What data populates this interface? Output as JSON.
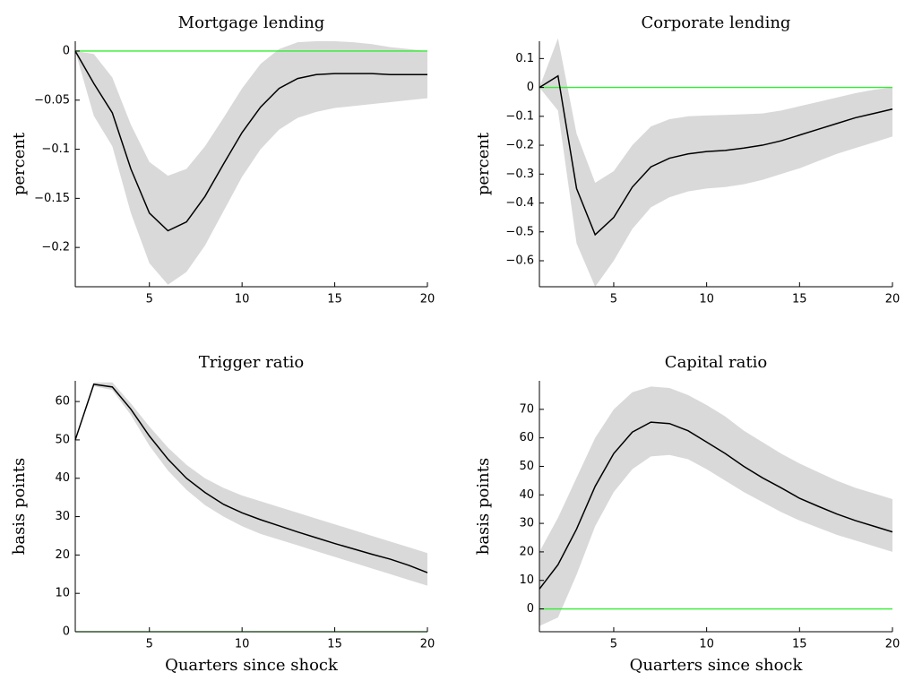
{
  "chart_data": [
    {
      "type": "line",
      "title": "Mortgage lending",
      "ylabel": "percent",
      "x": [
        1,
        2,
        3,
        4,
        5,
        6,
        7,
        8,
        9,
        10,
        11,
        12,
        13,
        14,
        15,
        16,
        17,
        18,
        19,
        20
      ],
      "series": [
        {
          "color": "#000000",
          "values": [
            0,
            -0.033,
            -0.063,
            -0.12,
            -0.165,
            -0.183,
            -0.174,
            -0.148,
            -0.115,
            -0.083,
            -0.057,
            -0.038,
            -0.028,
            -0.024,
            -0.023,
            -0.023,
            -0.023,
            -0.024,
            -0.024,
            -0.024
          ]
        }
      ],
      "band": {
        "color": "#d9d9d9",
        "upper": [
          0,
          -0.003,
          -0.027,
          -0.075,
          -0.113,
          -0.127,
          -0.12,
          -0.097,
          -0.068,
          -0.038,
          -0.013,
          0.002,
          0.009,
          0.01,
          0.01,
          0.009,
          0.007,
          0.004,
          0.002,
          0
        ],
        "lower": [
          0,
          -0.066,
          -0.097,
          -0.165,
          -0.216,
          -0.238,
          -0.225,
          -0.198,
          -0.163,
          -0.128,
          -0.1,
          -0.08,
          -0.068,
          -0.062,
          -0.058,
          -0.056,
          -0.054,
          -0.052,
          -0.05,
          -0.048
        ]
      },
      "hline": 0,
      "hline_color": "#33ee33",
      "xlim": [
        1,
        20
      ],
      "xticks": [
        5,
        10,
        15,
        20
      ],
      "ylim": [
        -0.24,
        0.01
      ],
      "yticks": [
        {
          "value": -0.2,
          "label": "−0.2"
        },
        {
          "value": -0.15,
          "label": "−0.15"
        },
        {
          "value": -0.1,
          "label": "−0.1"
        },
        {
          "value": -0.05,
          "label": "−0.05"
        },
        0
      ]
    },
    {
      "type": "line",
      "title": "Corporate lending",
      "ylabel": "percent",
      "x": [
        1,
        2,
        3,
        4,
        5,
        6,
        7,
        8,
        9,
        10,
        11,
        12,
        13,
        14,
        15,
        16,
        17,
        18,
        19,
        20
      ],
      "series": [
        {
          "color": "#000000",
          "values": [
            0,
            0.04,
            -0.35,
            -0.51,
            -0.45,
            -0.345,
            -0.275,
            -0.245,
            -0.23,
            -0.222,
            -0.218,
            -0.21,
            -0.2,
            -0.185,
            -0.165,
            -0.145,
            -0.125,
            -0.105,
            -0.09,
            -0.075
          ]
        }
      ],
      "band": {
        "color": "#d9d9d9",
        "upper": [
          0,
          0.17,
          -0.16,
          -0.33,
          -0.29,
          -0.2,
          -0.135,
          -0.11,
          -0.1,
          -0.097,
          -0.095,
          -0.093,
          -0.09,
          -0.08,
          -0.065,
          -0.05,
          -0.035,
          -0.02,
          -0.008,
          0
        ],
        "lower": [
          0,
          -0.08,
          -0.54,
          -0.69,
          -0.6,
          -0.49,
          -0.415,
          -0.38,
          -0.36,
          -0.35,
          -0.345,
          -0.335,
          -0.32,
          -0.3,
          -0.28,
          -0.255,
          -0.23,
          -0.21,
          -0.19,
          -0.17
        ]
      },
      "hline": 0,
      "hline_color": "#33ee33",
      "xlim": [
        1,
        20
      ],
      "xticks": [
        5,
        10,
        15,
        20
      ],
      "ylim": [
        -0.69,
        0.16
      ],
      "yticks": [
        {
          "value": -0.6,
          "label": "−0.6"
        },
        {
          "value": -0.5,
          "label": "−0.5"
        },
        {
          "value": -0.4,
          "label": "−0.4"
        },
        {
          "value": -0.3,
          "label": "−0.3"
        },
        {
          "value": -0.2,
          "label": "−0.2"
        },
        {
          "value": -0.1,
          "label": "−0.1"
        },
        0,
        0.1
      ]
    },
    {
      "type": "line",
      "title": "Trigger ratio",
      "ylabel": "basis points",
      "xlabel": "Quarters since shock",
      "x": [
        1,
        2,
        3,
        4,
        5,
        6,
        7,
        8,
        9,
        10,
        11,
        12,
        13,
        14,
        15,
        16,
        17,
        18,
        19,
        20
      ],
      "series": [
        {
          "color": "#000000",
          "values": [
            50,
            64.5,
            63.8,
            58,
            51,
            45,
            40,
            36.3,
            33.2,
            31,
            29.2,
            27.6,
            26,
            24.5,
            23,
            21.6,
            20.2,
            18.9,
            17.3,
            15.4
          ]
        }
      ],
      "band": {
        "color": "#d9d9d9",
        "upper": [
          50,
          65,
          65,
          59.5,
          53.5,
          48,
          43.5,
          40,
          37.5,
          35.5,
          34,
          32.5,
          31,
          29.5,
          28,
          26.5,
          25,
          23.5,
          22,
          20.5
        ],
        "lower": [
          50,
          64,
          63,
          56.5,
          48.5,
          42,
          37,
          33,
          30,
          27.5,
          25.5,
          24,
          22.5,
          21,
          19.5,
          18,
          16.5,
          15,
          13.5,
          12
        ]
      },
      "hline": 0,
      "hline_color": "#33ee33",
      "xlim": [
        1,
        20
      ],
      "xticks": [
        5,
        10,
        15,
        20
      ],
      "ylim": [
        0,
        65.4
      ],
      "yticks": [
        0,
        10,
        20,
        30,
        40,
        50,
        60
      ]
    },
    {
      "type": "line",
      "title": "Capital ratio",
      "ylabel": "basis points",
      "xlabel": "Quarters since shock",
      "x": [
        1,
        2,
        3,
        4,
        5,
        6,
        7,
        8,
        9,
        10,
        11,
        12,
        13,
        14,
        15,
        16,
        17,
        18,
        19,
        20
      ],
      "series": [
        {
          "color": "#000000",
          "values": [
            7,
            15.5,
            28,
            43,
            54.5,
            62,
            65.5,
            65,
            62.5,
            58.5,
            54.5,
            50,
            46,
            42.5,
            38.8,
            36,
            33.3,
            31,
            29,
            27
          ]
        }
      ],
      "band": {
        "color": "#d9d9d9",
        "upper": [
          20,
          32,
          46,
          60,
          70,
          76,
          78,
          77.5,
          75,
          71.5,
          67.5,
          62.5,
          58.5,
          54.5,
          51,
          48,
          45,
          42.5,
          40.5,
          38.5
        ],
        "lower": [
          -6,
          -3,
          12,
          29,
          41,
          49,
          53.5,
          54,
          52.5,
          49,
          45,
          41,
          37.5,
          34,
          31,
          28.5,
          26,
          24,
          22,
          20
        ]
      },
      "hline": 0,
      "hline_color": "#33ee33",
      "xlim": [
        1,
        20
      ],
      "xticks": [
        5,
        10,
        15,
        20
      ],
      "ylim": [
        -8,
        80
      ],
      "yticks": [
        0,
        10,
        20,
        30,
        40,
        50,
        60,
        70
      ]
    }
  ]
}
